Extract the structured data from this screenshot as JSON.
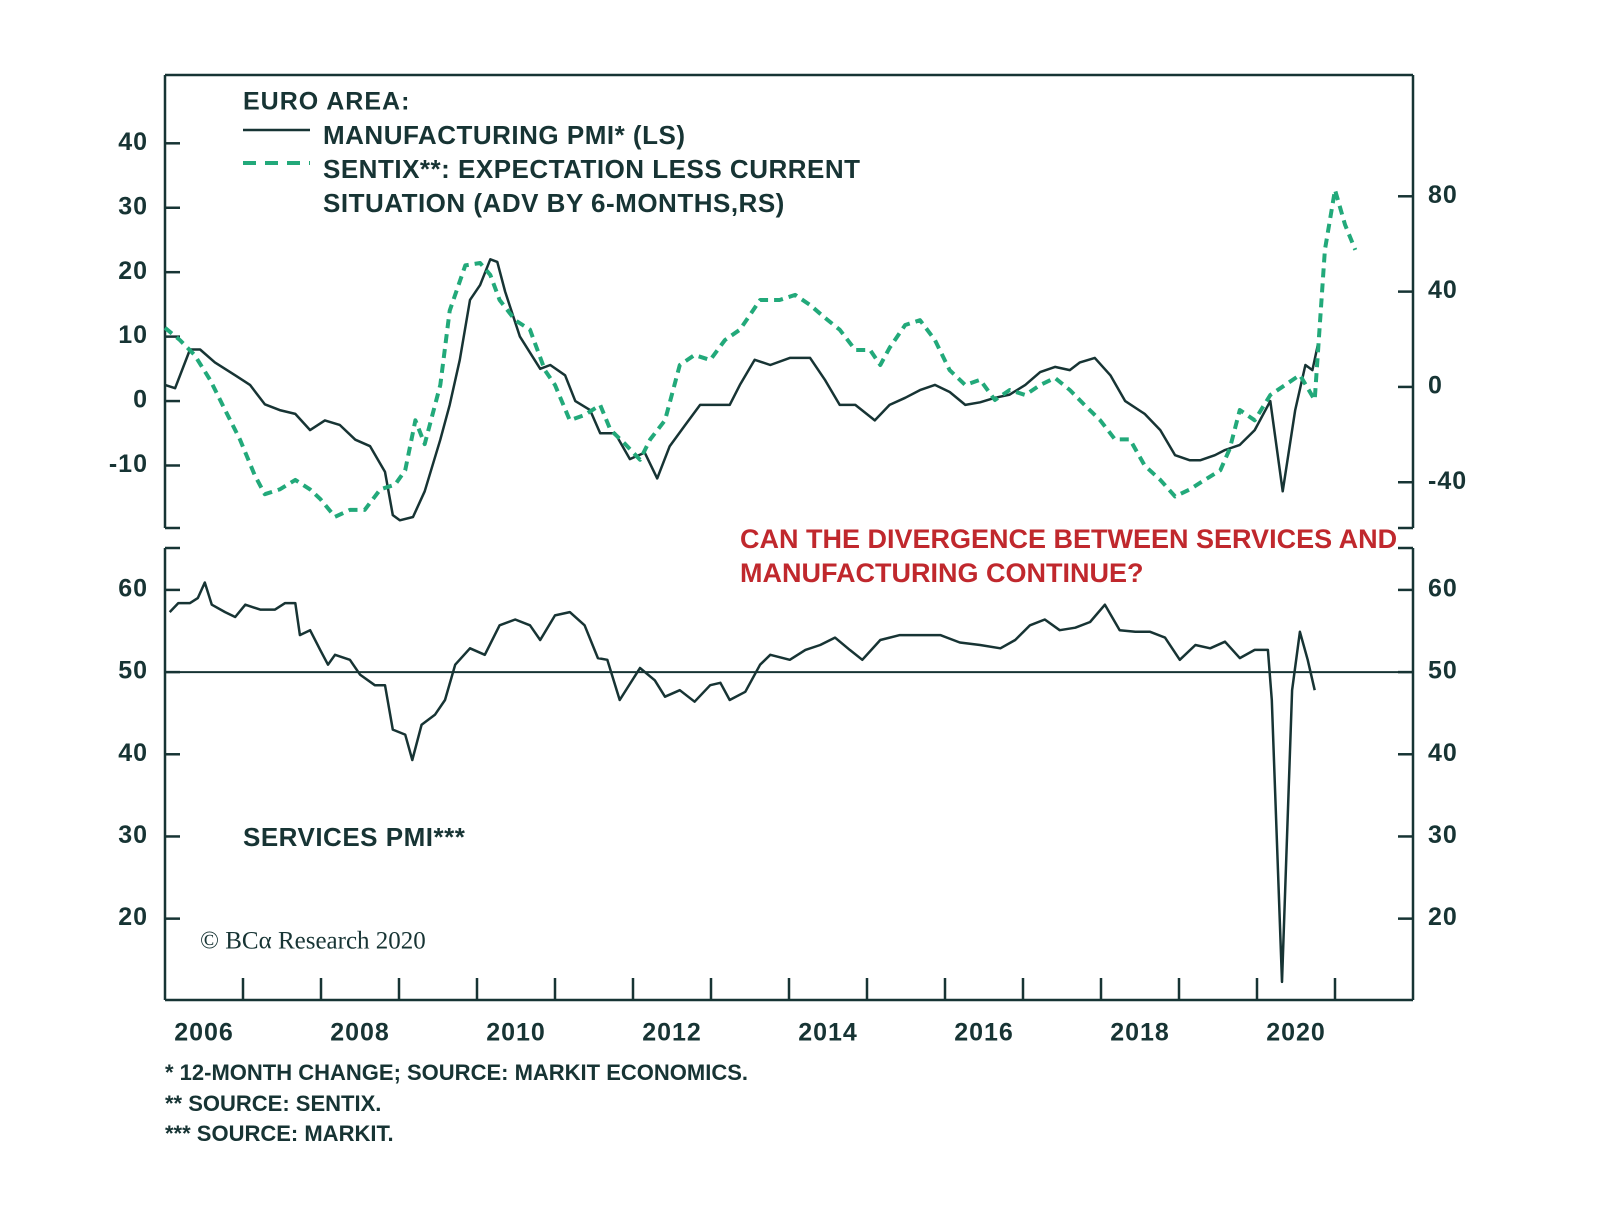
{
  "chart_data": [
    {
      "type": "line",
      "title": "EURO AREA:",
      "xlim": [
        2006,
        2022
      ],
      "ylim": [
        -19.7,
        50.6
      ],
      "yticks": [
        -10,
        0,
        10,
        20,
        30,
        40
      ],
      "y2lim": [
        -59.2,
        130.9
      ],
      "y2ticks": [
        -40,
        0,
        40,
        80
      ],
      "series": [
        {
          "name": "MANUFACTURING PMI* (LS)",
          "color": "#173434",
          "style": "solid",
          "axis": "y",
          "x": [
            2006.0,
            2006.13,
            2006.32,
            2006.45,
            2006.64,
            2006.9,
            2007.09,
            2007.28,
            2007.47,
            2007.67,
            2007.86,
            2008.05,
            2008.24,
            2008.44,
            2008.63,
            2008.82,
            2008.92,
            2009.01,
            2009.18,
            2009.33,
            2009.53,
            2009.65,
            2009.78,
            2009.91,
            2010.04,
            2010.17,
            2010.26,
            2010.36,
            2010.55,
            2010.81,
            2010.94,
            2011.13,
            2011.26,
            2011.45,
            2011.58,
            2011.77,
            2011.96,
            2012.15,
            2012.31,
            2012.47,
            2012.67,
            2012.86,
            2013.05,
            2013.24,
            2013.37,
            2013.56,
            2013.76,
            2014.01,
            2014.27,
            2014.46,
            2014.65,
            2014.85,
            2015.1,
            2015.29,
            2015.49,
            2015.68,
            2015.87,
            2016.06,
            2016.26,
            2016.45,
            2016.64,
            2016.83,
            2017.03,
            2017.22,
            2017.41,
            2017.6,
            2017.73,
            2017.92,
            2018.12,
            2018.31,
            2018.56,
            2018.76,
            2018.95,
            2019.14,
            2019.27,
            2019.46,
            2019.59,
            2019.78,
            2019.97,
            2020.17,
            2020.33,
            2020.49,
            2020.62,
            2020.71,
            2020.78
          ],
          "values": [
            2.5,
            2,
            8,
            8,
            6,
            4,
            2.5,
            -0.5,
            -1.4,
            -2,
            -4.5,
            -3,
            -3.7,
            -6,
            -7,
            -11,
            -17.7,
            -18.5,
            -18,
            -14,
            -6,
            -0.6,
            6.4,
            15.7,
            18,
            22,
            21.6,
            17,
            10,
            5,
            5.6,
            4,
            0,
            -1.4,
            -5,
            -5,
            -9,
            -8,
            -12,
            -7,
            -3.7,
            -0.6,
            -0.6,
            -0.6,
            2.5,
            6.4,
            5.6,
            6.7,
            6.7,
            3.3,
            -0.6,
            -0.6,
            -3,
            -0.6,
            0.5,
            1.7,
            2.5,
            1.4,
            -0.6,
            -0.2,
            0.5,
            1,
            2.5,
            4.5,
            5.3,
            4.8,
            6,
            6.7,
            4,
            0,
            -2,
            -4.5,
            -8.4,
            -9.2,
            -9.2,
            -8.4,
            -7.6,
            -6.8,
            -4.5,
            0,
            -14,
            -1.4,
            5.6,
            4.8,
            8.7
          ]
        },
        {
          "name": "SENTIX**: EXPECTATION LESS CURRENT SITUATION (ADV BY 6-MONTHS,RS)",
          "color": "#22a97a",
          "style": "dashed",
          "axis": "y2",
          "x": [
            2006.0,
            2006.19,
            2006.38,
            2006.58,
            2006.77,
            2006.96,
            2007.15,
            2007.28,
            2007.47,
            2007.67,
            2007.86,
            2007.99,
            2008.18,
            2008.37,
            2008.56,
            2008.76,
            2008.95,
            2009.08,
            2009.21,
            2009.33,
            2009.53,
            2009.65,
            2009.85,
            2010.04,
            2010.17,
            2010.29,
            2010.49,
            2010.68,
            2010.87,
            2011.0,
            2011.19,
            2011.38,
            2011.58,
            2011.71,
            2011.9,
            2012.09,
            2012.22,
            2012.41,
            2012.6,
            2012.79,
            2012.99,
            2013.18,
            2013.37,
            2013.63,
            2013.88,
            2014.08,
            2014.27,
            2014.46,
            2014.65,
            2014.85,
            2015.04,
            2015.17,
            2015.29,
            2015.49,
            2015.68,
            2015.87,
            2016.06,
            2016.26,
            2016.45,
            2016.64,
            2016.83,
            2017.03,
            2017.22,
            2017.41,
            2017.6,
            2017.79,
            2017.99,
            2018.18,
            2018.37,
            2018.56,
            2018.76,
            2018.95,
            2019.14,
            2019.33,
            2019.53,
            2019.65,
            2019.78,
            2019.97,
            2020.17,
            2020.36,
            2020.55,
            2020.74,
            2020.87,
            2021.0,
            2021.13,
            2021.26
          ],
          "values": [
            24.8,
            19.7,
            13.4,
            2.9,
            -9.7,
            -22,
            -37,
            -45,
            -43,
            -39,
            -43,
            -47,
            -54.5,
            -51.6,
            -51.6,
            -43,
            -41,
            -35,
            -14,
            -24,
            0.8,
            32,
            51,
            52,
            47,
            36.5,
            28,
            24,
            7,
            0.8,
            -14,
            -11.8,
            -7.6,
            -18,
            -24,
            -30.6,
            -22,
            -14,
            9.2,
            13.4,
            11.3,
            19.7,
            24,
            36.5,
            36.5,
            38.6,
            34.4,
            29,
            24,
            15.5,
            15.5,
            9.2,
            16.4,
            26,
            28,
            19.7,
            7,
            0.8,
            3,
            -5.5,
            -1.3,
            -3.4,
            0.8,
            3.8,
            -1.3,
            -7.6,
            -14,
            -22,
            -22,
            -33,
            -39,
            -46,
            -43,
            -39,
            -35,
            -26,
            -9.7,
            -14,
            -3.4,
            0.8,
            5,
            -5.5,
            57.5,
            82.7,
            68,
            57.5
          ]
        }
      ]
    },
    {
      "type": "line",
      "annotation": "CAN THE DIVERGENCE BETWEEN SERVICES AND MANUFACTURING CONTINUE?",
      "credit": "© BCα Research 2020",
      "xlim": [
        2006,
        2022
      ],
      "xticks": [
        {
          "value": 2006.5,
          "label": "2006"
        },
        {
          "value": 2008.5,
          "label": "2008"
        },
        {
          "value": 2010.5,
          "label": "2010"
        },
        {
          "value": 2012.5,
          "label": "2012"
        },
        {
          "value": 2014.5,
          "label": "2014"
        },
        {
          "value": 2016.5,
          "label": "2016"
        },
        {
          "value": 2018.5,
          "label": "2018"
        },
        {
          "value": 2020.5,
          "label": "2020"
        }
      ],
      "ylim": [
        10.1,
        65.1
      ],
      "yticks": [
        20,
        30,
        40,
        50,
        60
      ],
      "y2lim": [
        10.1,
        65.1
      ],
      "y2ticks": [
        20,
        30,
        40,
        50,
        60
      ],
      "reference_line": 50,
      "series": [
        {
          "name": "SERVICES PMI***",
          "color": "#173434",
          "style": "solid",
          "axis": "y",
          "x": [
            2006.06,
            2006.17,
            2006.32,
            2006.42,
            2006.51,
            2006.6,
            2006.77,
            2006.9,
            2007.03,
            2007.22,
            2007.41,
            2007.54,
            2007.67,
            2007.73,
            2007.86,
            2007.99,
            2008.09,
            2008.18,
            2008.37,
            2008.5,
            2008.69,
            2008.82,
            2008.92,
            2009.08,
            2009.17,
            2009.29,
            2009.46,
            2009.59,
            2009.72,
            2009.91,
            2010.1,
            2010.29,
            2010.49,
            2010.68,
            2010.81,
            2011.0,
            2011.19,
            2011.38,
            2011.55,
            2011.67,
            2011.83,
            2012.09,
            2012.28,
            2012.41,
            2012.6,
            2012.79,
            2012.99,
            2013.12,
            2013.24,
            2013.44,
            2013.63,
            2013.76,
            2014.01,
            2014.21,
            2014.4,
            2014.59,
            2014.78,
            2014.94,
            2015.17,
            2015.42,
            2015.68,
            2015.94,
            2016.19,
            2016.45,
            2016.71,
            2016.9,
            2017.09,
            2017.28,
            2017.47,
            2017.67,
            2017.86,
            2018.05,
            2018.24,
            2018.44,
            2018.63,
            2018.82,
            2019.01,
            2019.21,
            2019.4,
            2019.59,
            2019.78,
            2019.97,
            2020.14,
            2020.19,
            2020.32,
            2020.45,
            2020.55,
            2020.65,
            2020.74
          ],
          "values": [
            57.3,
            58.4,
            58.4,
            59,
            60.9,
            58.2,
            57.3,
            56.7,
            58.2,
            57.6,
            57.6,
            58.4,
            58.4,
            54.5,
            55.1,
            52.7,
            50.9,
            52.1,
            51.5,
            49.7,
            48.4,
            48.4,
            43,
            42.4,
            39.3,
            43.6,
            44.8,
            46.6,
            50.9,
            52.9,
            52.1,
            55.7,
            56.4,
            55.7,
            53.9,
            56.9,
            57.3,
            55.7,
            51.7,
            51.5,
            46.6,
            50.5,
            49,
            47,
            47.8,
            46.4,
            48.4,
            48.7,
            46.6,
            47.6,
            50.9,
            52.1,
            51.5,
            52.7,
            53.3,
            54.2,
            52.7,
            51.5,
            53.9,
            54.5,
            54.5,
            54.5,
            53.6,
            53.3,
            52.9,
            53.9,
            55.7,
            56.4,
            55.1,
            55.4,
            56.1,
            58.2,
            55.1,
            54.9,
            54.9,
            54.2,
            51.5,
            53.3,
            52.9,
            53.7,
            51.7,
            52.7,
            52.7,
            46.6,
            12.3,
            47.8,
            54.9,
            51.5,
            47.8
          ]
        }
      ]
    }
  ],
  "footnotes": [
    "*  12-MONTH CHANGE; SOURCE: MARKIT ECONOMICS.",
    "**  SOURCE: SENTIX.",
    "*** SOURCE: MARKIT."
  ]
}
